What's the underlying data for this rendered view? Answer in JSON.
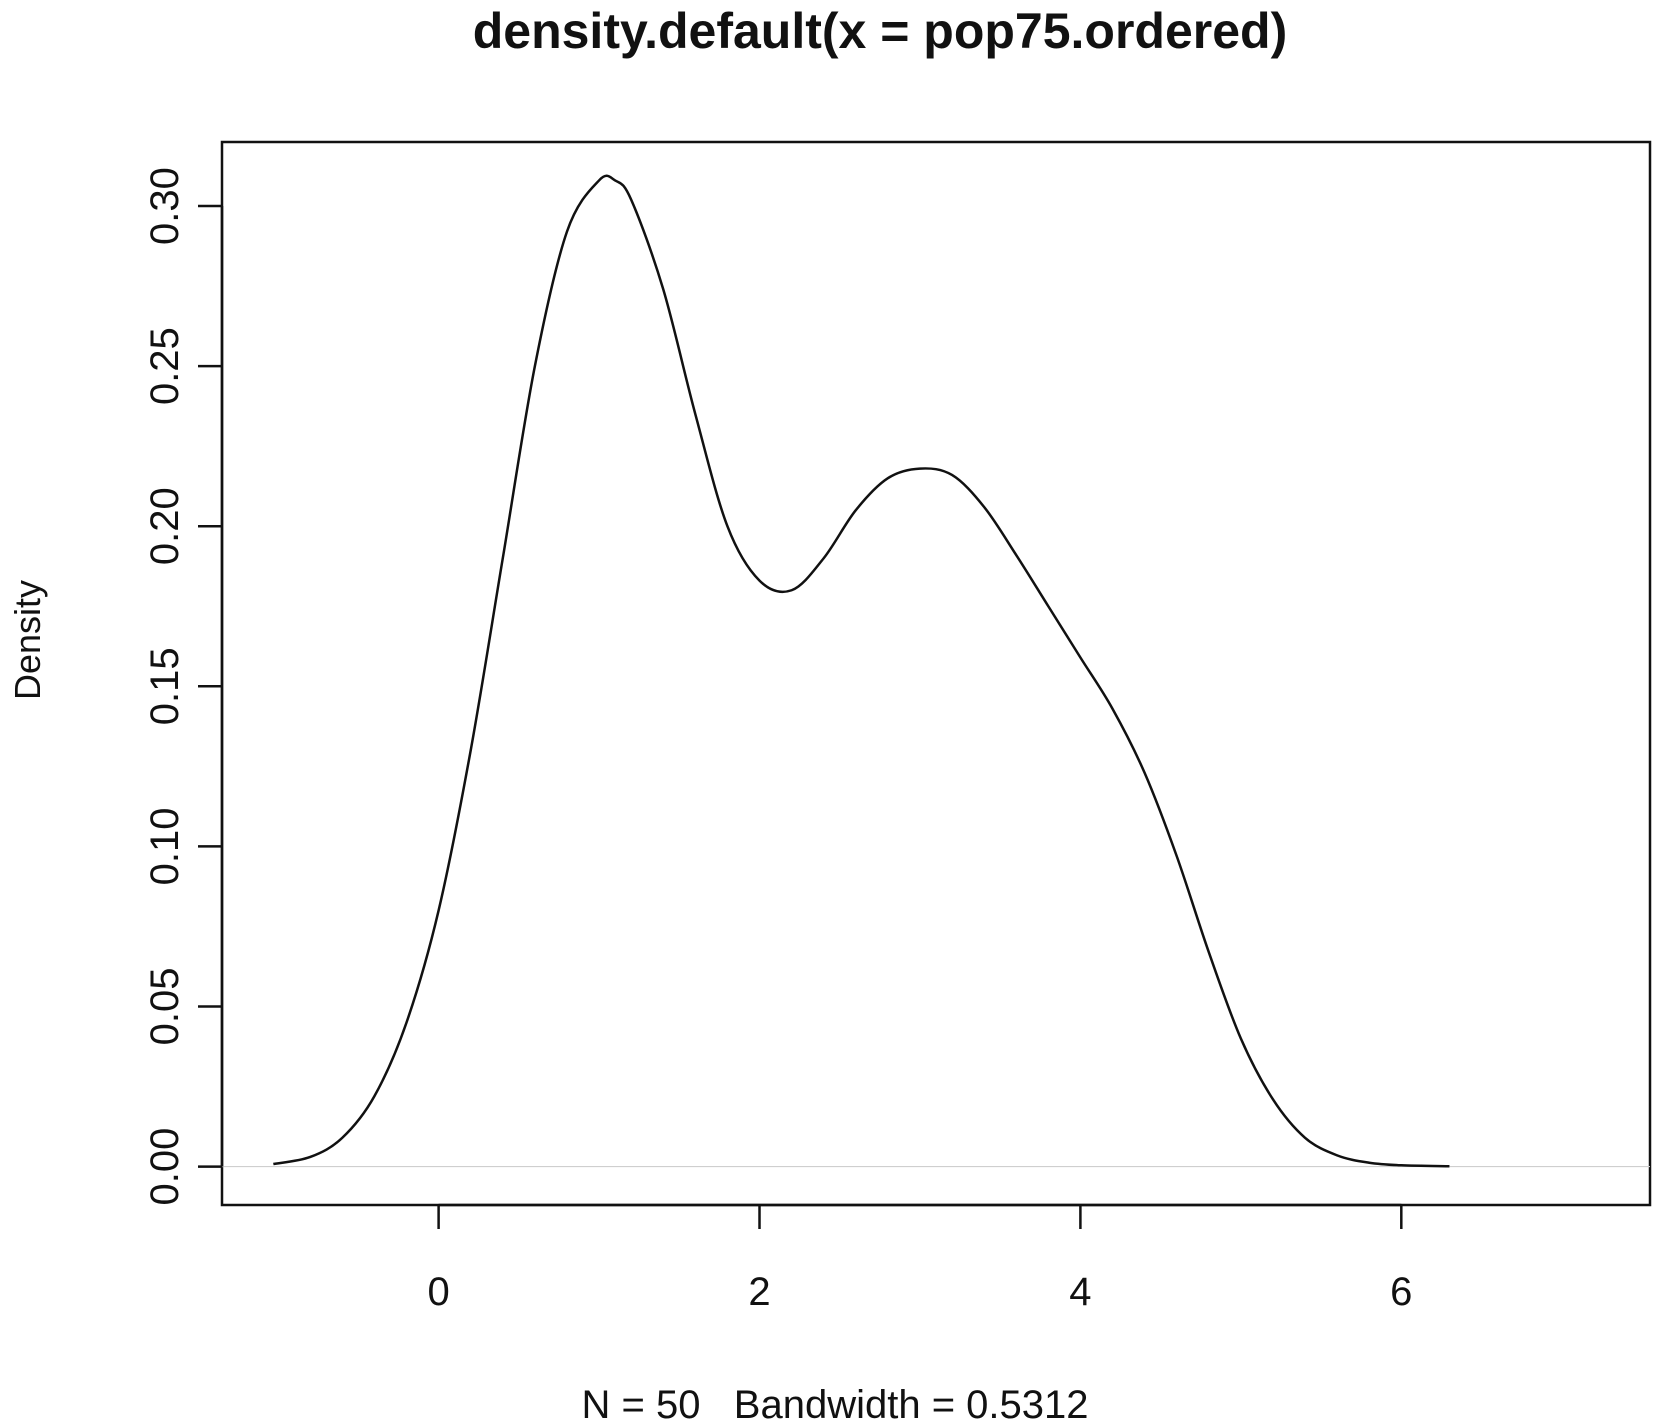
{
  "chart_data": {
    "type": "line",
    "title": "density.default(x = pop75.ordered)",
    "xlabel": "N = 50   Bandwidth = 0.5312",
    "ylabel": "Density",
    "xlim": [
      -1.35,
      7.55
    ],
    "ylim": [
      -0.012,
      0.32
    ],
    "x_ticks": [
      0,
      2,
      4,
      6
    ],
    "x_tick_labels": [
      "0",
      "2",
      "4",
      "6"
    ],
    "y_ticks": [
      0.0,
      0.05,
      0.1,
      0.15,
      0.2,
      0.25,
      0.3
    ],
    "y_tick_labels": [
      "0.00",
      "0.05",
      "0.10",
      "0.15",
      "0.20",
      "0.25",
      "0.30"
    ],
    "grid": false,
    "series": [
      {
        "x": [
          -1.03,
          -0.8,
          -0.6,
          -0.4,
          -0.2,
          0.0,
          0.2,
          0.4,
          0.6,
          0.8,
          1.0,
          1.1,
          1.2,
          1.4,
          1.6,
          1.8,
          2.0,
          2.2,
          2.4,
          2.6,
          2.8,
          3.0,
          3.2,
          3.4,
          3.6,
          3.8,
          4.0,
          4.2,
          4.4,
          4.6,
          4.8,
          5.0,
          5.2,
          5.4,
          5.6,
          5.8,
          6.0,
          6.3
        ],
        "y": [
          0.0008,
          0.003,
          0.009,
          0.022,
          0.045,
          0.08,
          0.13,
          0.19,
          0.25,
          0.292,
          0.308,
          0.308,
          0.302,
          0.274,
          0.235,
          0.2,
          0.183,
          0.18,
          0.19,
          0.205,
          0.215,
          0.218,
          0.216,
          0.206,
          0.191,
          0.175,
          0.159,
          0.143,
          0.123,
          0.097,
          0.067,
          0.04,
          0.021,
          0.009,
          0.0035,
          0.0012,
          0.0004,
          0.0001
        ]
      }
    ],
    "zero_line": true
  }
}
